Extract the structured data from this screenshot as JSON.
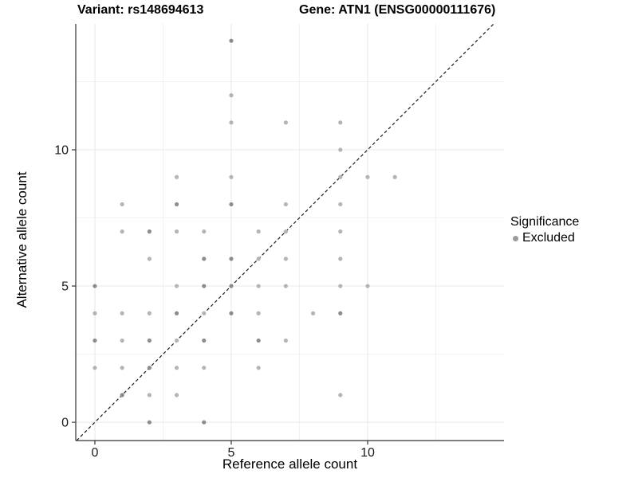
{
  "header": {
    "title_left": "Variant: rs148694613",
    "title_right": "Gene: ATN1 (ENSG00000111676)"
  },
  "legend": {
    "title": "Significance",
    "items": [
      {
        "label": "Excluded",
        "color": "#9b9b9b"
      }
    ]
  },
  "chart_data": {
    "type": "scatter",
    "title": "Variant: rs148694613 / Gene: ATN1 (ENSG00000111676)",
    "xlabel": "Reference allele count",
    "ylabel": "Alternative allele count",
    "xlim": [
      -0.7,
      15.0
    ],
    "ylim": [
      -0.67,
      14.62
    ],
    "x_ticks": [
      0,
      5,
      10
    ],
    "y_ticks": [
      0,
      5,
      10
    ],
    "x_minor_ticks": [
      2.5,
      7.5,
      12.5
    ],
    "y_minor_ticks": [
      2.5,
      7.5,
      12.5
    ],
    "grid": true,
    "legend_position": "right",
    "identity_line": {
      "slope": 1,
      "intercept": 0,
      "style": "dashed"
    },
    "series": [
      {
        "name": "Excluded",
        "points": [
          [
            0,
            2,
            1
          ],
          [
            0,
            3,
            2
          ],
          [
            0,
            4,
            1
          ],
          [
            0,
            5,
            2
          ],
          [
            1,
            1,
            2
          ],
          [
            1,
            2,
            1
          ],
          [
            1,
            3,
            1
          ],
          [
            1,
            4,
            1
          ],
          [
            1,
            7,
            1
          ],
          [
            1,
            8,
            1
          ],
          [
            2,
            0,
            2
          ],
          [
            2,
            1,
            1
          ],
          [
            2,
            2,
            2
          ],
          [
            2,
            3,
            2
          ],
          [
            2,
            4,
            1
          ],
          [
            2,
            6,
            1
          ],
          [
            2,
            7,
            2
          ],
          [
            3,
            1,
            1
          ],
          [
            3,
            2,
            1
          ],
          [
            3,
            3,
            1
          ],
          [
            3,
            4,
            2
          ],
          [
            3,
            5,
            1
          ],
          [
            3,
            7,
            1
          ],
          [
            3,
            8,
            2
          ],
          [
            3,
            9,
            1
          ],
          [
            4,
            0,
            2
          ],
          [
            4,
            2,
            1
          ],
          [
            4,
            3,
            2
          ],
          [
            4,
            4,
            1
          ],
          [
            4,
            5,
            2
          ],
          [
            4,
            6,
            2
          ],
          [
            4,
            7,
            1
          ],
          [
            5,
            4,
            2
          ],
          [
            5,
            5,
            2
          ],
          [
            5,
            6,
            2
          ],
          [
            5,
            8,
            2
          ],
          [
            5,
            9,
            1
          ],
          [
            5,
            11,
            1
          ],
          [
            5,
            12,
            1
          ],
          [
            5,
            14,
            2
          ],
          [
            6,
            2,
            1
          ],
          [
            6,
            3,
            2
          ],
          [
            6,
            4,
            1
          ],
          [
            6,
            5,
            1
          ],
          [
            6,
            6,
            1
          ],
          [
            6,
            7,
            1
          ],
          [
            7,
            3,
            1
          ],
          [
            7,
            5,
            1
          ],
          [
            7,
            6,
            1
          ],
          [
            7,
            7,
            1
          ],
          [
            7,
            8,
            1
          ],
          [
            7,
            11,
            1
          ],
          [
            8,
            4,
            1
          ],
          [
            9,
            1,
            1
          ],
          [
            9,
            4,
            2
          ],
          [
            9,
            5,
            1
          ],
          [
            9,
            6,
            1
          ],
          [
            9,
            7,
            1
          ],
          [
            9,
            8,
            1
          ],
          [
            9,
            9,
            1
          ],
          [
            9,
            10,
            1
          ],
          [
            9,
            11,
            1
          ],
          [
            10,
            5,
            1
          ],
          [
            10,
            9,
            1
          ],
          [
            11,
            9,
            1
          ]
        ]
      }
    ],
    "colors": {
      "point_light": "#b4b4b4",
      "point_dark": "#8c8c8c",
      "grid_major": "#e8e8e8",
      "grid_minor": "#f2f2f2",
      "axis_line": "#333333",
      "tick_label": "#1a1a1a",
      "identity_line": "#1a1a1a"
    }
  }
}
